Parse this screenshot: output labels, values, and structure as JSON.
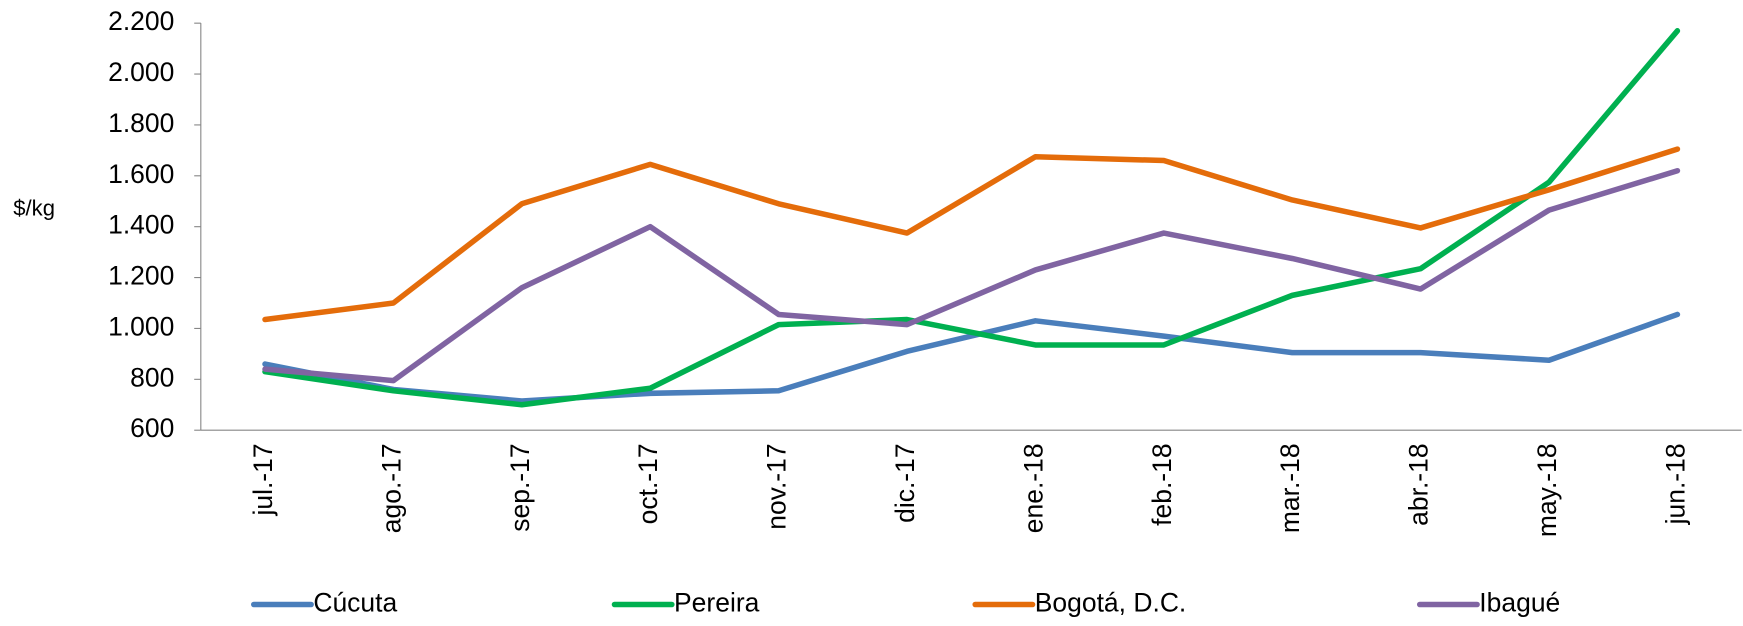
{
  "chart_data": {
    "type": "line",
    "y_label": "$/kg",
    "categories": [
      "jul.-17",
      "ago.-17",
      "sep.-17",
      "oct.-17",
      "nov.-17",
      "dic.-17",
      "ene.-18",
      "feb.-18",
      "mar.-18",
      "abr.-18",
      "may.-18",
      "jun.-18"
    ],
    "series": [
      {
        "name": "Cúcuta",
        "color": "#4a7ebb",
        "values": [
          860,
          760,
          715,
          745,
          755,
          910,
          1030,
          970,
          905,
          905,
          875,
          1055
        ]
      },
      {
        "name": "Pereira",
        "color": "#00b050",
        "values": [
          830,
          755,
          700,
          765,
          1015,
          1035,
          935,
          935,
          1130,
          1235,
          1575,
          2170
        ]
      },
      {
        "name": "Bogotá, D.C.",
        "color": "#e46c0a",
        "values": [
          1035,
          1100,
          1490,
          1645,
          1490,
          1375,
          1675,
          1660,
          1505,
          1395,
          1545,
          1705
        ]
      },
      {
        "name": "Ibagué",
        "color": "#8064a2",
        "values": [
          840,
          795,
          1160,
          1400,
          1055,
          1015,
          1230,
          1375,
          1275,
          1155,
          1465,
          1620
        ]
      }
    ],
    "ylim": [
      600,
      2200
    ],
    "yticks": [
      600,
      800,
      {
        "value": 1000,
        "label": "1.000"
      },
      {
        "value": 1200,
        "label": "1.200"
      },
      {
        "value": 1400,
        "label": "1.400"
      },
      {
        "value": 1600,
        "label": "1.600"
      },
      {
        "value": 1800,
        "label": "1.800"
      },
      {
        "value": 2000,
        "label": "2.000"
      },
      {
        "value": 2200,
        "label": "2.200"
      }
    ],
    "legend": "bottom"
  }
}
